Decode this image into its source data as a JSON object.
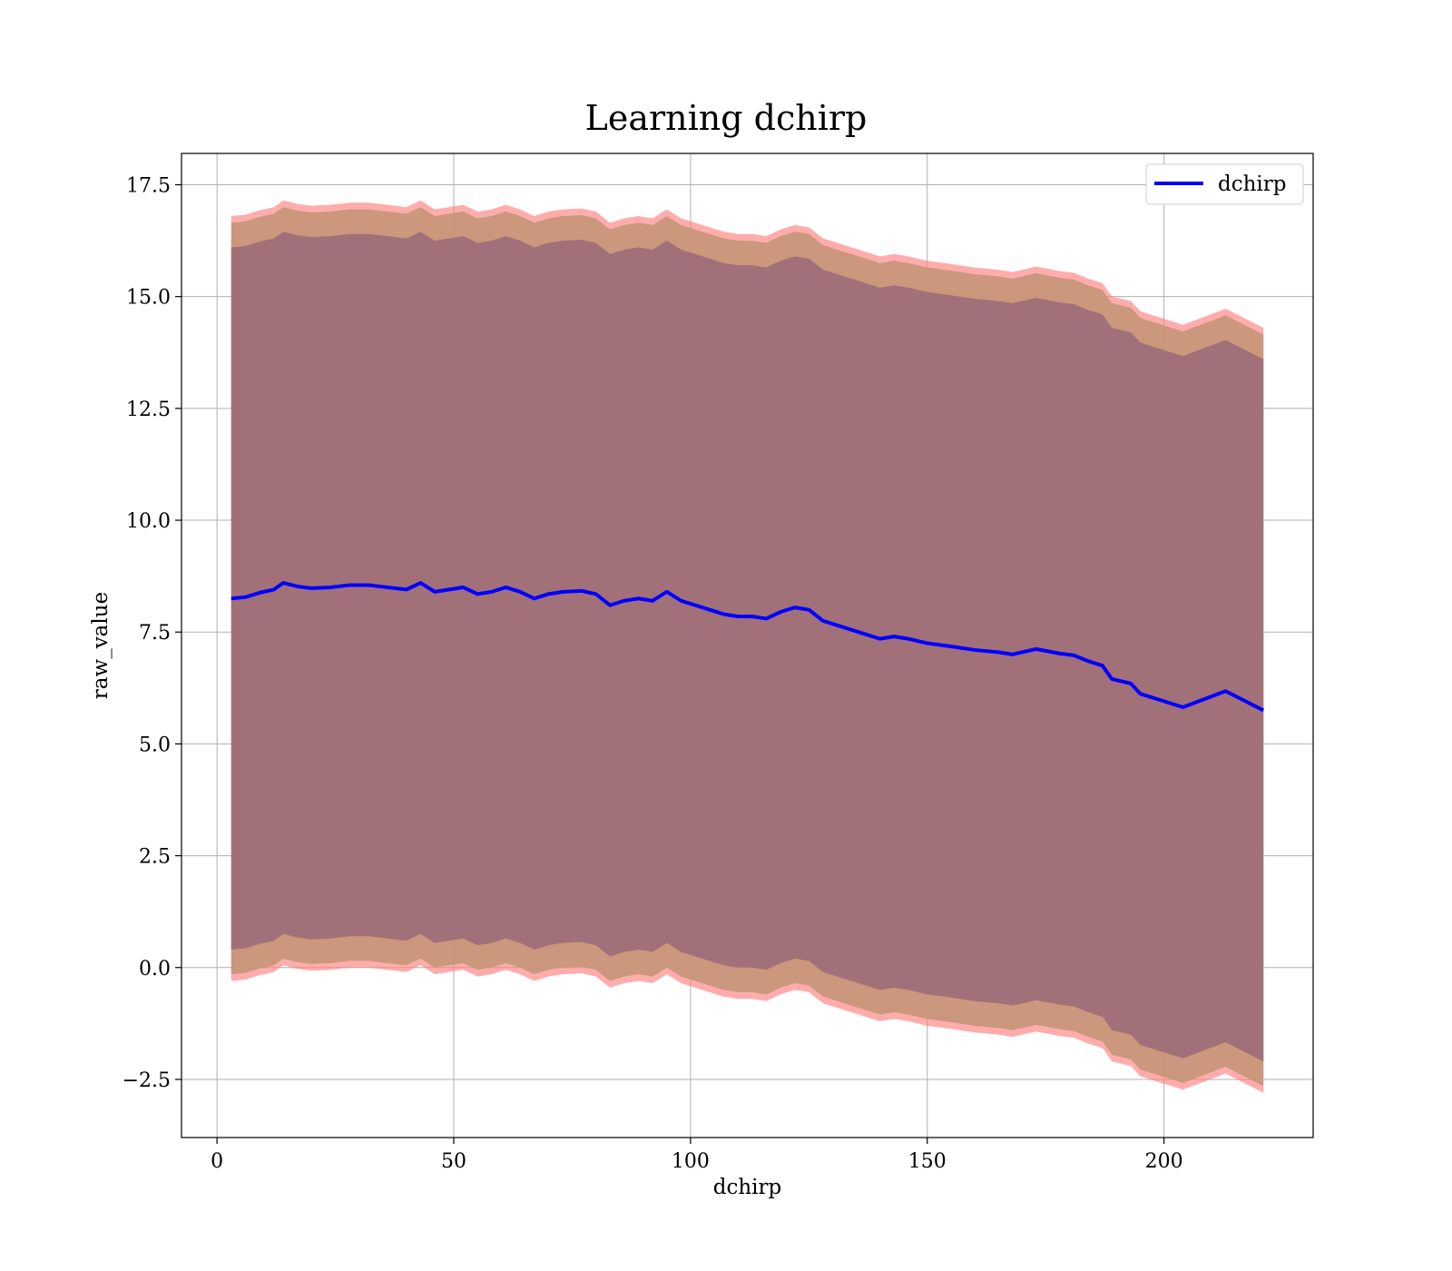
{
  "chart_data": {
    "type": "area",
    "title": "Learning dchirp",
    "xlabel": "dchirp",
    "ylabel": "raw_value",
    "xlim": [
      -7.5,
      231.5
    ],
    "ylim": [
      -3.8,
      18.2
    ],
    "xticks": [
      0,
      50,
      100,
      150,
      200
    ],
    "yticks": [
      -2.5,
      0.0,
      2.5,
      5.0,
      7.5,
      10.0,
      12.5,
      15.0,
      17.5
    ],
    "ytick_labels": [
      "−2.5",
      "0.0",
      "2.5",
      "5.0",
      "7.5",
      "10.0",
      "12.5",
      "15.0",
      "17.5"
    ],
    "grid": true,
    "legend": {
      "position": "top-right",
      "entries": [
        "dchirp"
      ]
    },
    "colors": {
      "line": "#0000ff",
      "outer_band": "#ff8080",
      "middle_band": "#c8967a",
      "inner_band": "#a27078"
    },
    "x": [
      3,
      6,
      9,
      12,
      14,
      17,
      20,
      24,
      28,
      32,
      36,
      40,
      43,
      46,
      49,
      52,
      55,
      58,
      61,
      64,
      67,
      70,
      73,
      77,
      80,
      83,
      86,
      89,
      92,
      95,
      98,
      101,
      104,
      107,
      110,
      113,
      116,
      119,
      122,
      125,
      128,
      131,
      134,
      137,
      140,
      143,
      146,
      150,
      155,
      160,
      165,
      168,
      173,
      178,
      181,
      184,
      187,
      189,
      193,
      195,
      204,
      213,
      221
    ],
    "series": [
      {
        "name": "dchirp",
        "values": [
          8.25,
          8.28,
          8.38,
          8.45,
          8.6,
          8.52,
          8.48,
          8.5,
          8.55,
          8.55,
          8.5,
          8.45,
          8.6,
          8.4,
          8.45,
          8.5,
          8.35,
          8.4,
          8.5,
          8.4,
          8.25,
          8.35,
          8.4,
          8.42,
          8.35,
          8.1,
          8.2,
          8.25,
          8.2,
          8.4,
          8.2,
          8.1,
          8.0,
          7.9,
          7.85,
          7.85,
          7.8,
          7.95,
          8.05,
          8.0,
          7.75,
          7.65,
          7.55,
          7.45,
          7.35,
          7.4,
          7.35,
          7.25,
          7.18,
          7.1,
          7.05,
          7.0,
          7.12,
          7.02,
          6.98,
          6.85,
          6.75,
          6.45,
          6.35,
          6.12,
          5.82,
          6.18,
          5.75
        ]
      }
    ],
    "bands": [
      {
        "name": "outer",
        "offset": 8.55
      },
      {
        "name": "middle",
        "offset": 8.4
      },
      {
        "name": "inner",
        "offset": 7.85
      }
    ]
  }
}
